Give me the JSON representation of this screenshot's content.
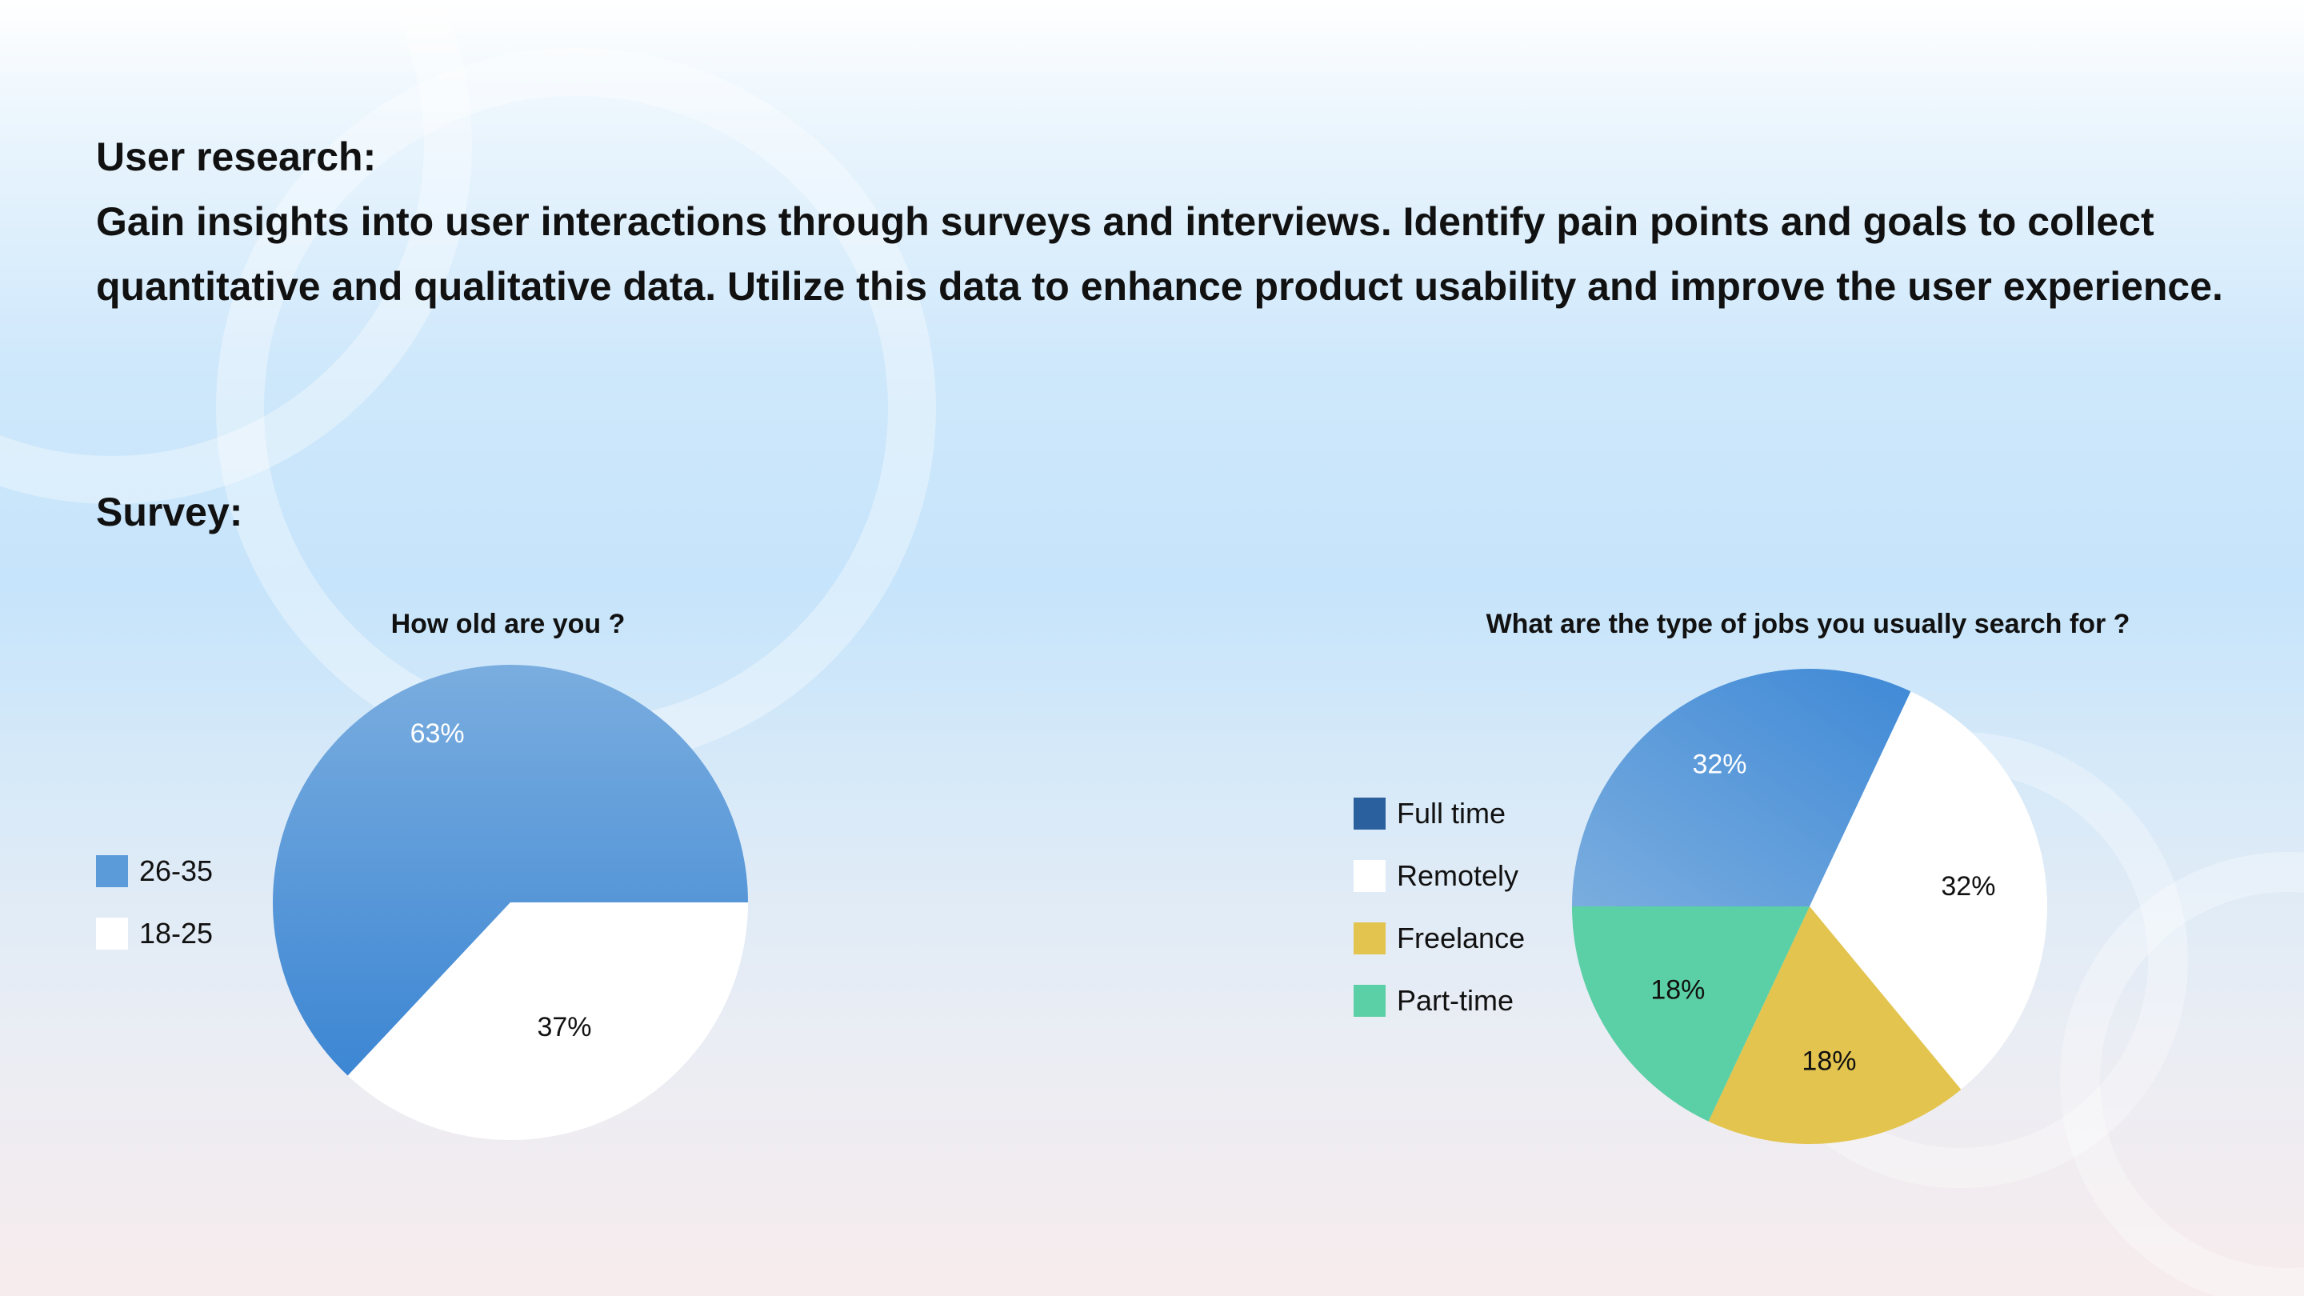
{
  "header": {
    "title": "User research:",
    "description": "Gain insights into user interactions through surveys and interviews. Identify pain points and goals to collect quantitative and qualitative data. Utilize this data to enhance product usability and improve the user experience.",
    "survey_label": "Survey:"
  },
  "chart_data": [
    {
      "type": "pie",
      "title": "How old are you ?",
      "legend_position": "left",
      "slices": [
        {
          "label": "26-35",
          "value": 63,
          "display": "63%",
          "color": "#5b9bd9",
          "text_color": "#ffffff"
        },
        {
          "label": "18-25",
          "value": 37,
          "display": "37%",
          "color": "#ffffff",
          "text_color": "#111111"
        }
      ]
    },
    {
      "type": "pie",
      "title": "What are the type of jobs you usually search for ?",
      "legend_position": "left",
      "slices": [
        {
          "label": "Full time",
          "value": 32,
          "display": "32%",
          "color": "#4a8fd6",
          "legend_color": "#2a609e",
          "text_color": "#ffffff"
        },
        {
          "label": "Remotely",
          "value": 32,
          "display": "32%",
          "color": "#ffffff",
          "text_color": "#111111"
        },
        {
          "label": "Freelance",
          "value": 18,
          "display": "18%",
          "color": "#e3c44e",
          "text_color": "#111111"
        },
        {
          "label": "Part-time",
          "value": 18,
          "display": "18%",
          "color": "#5bcfa6",
          "text_color": "#111111"
        }
      ]
    }
  ]
}
